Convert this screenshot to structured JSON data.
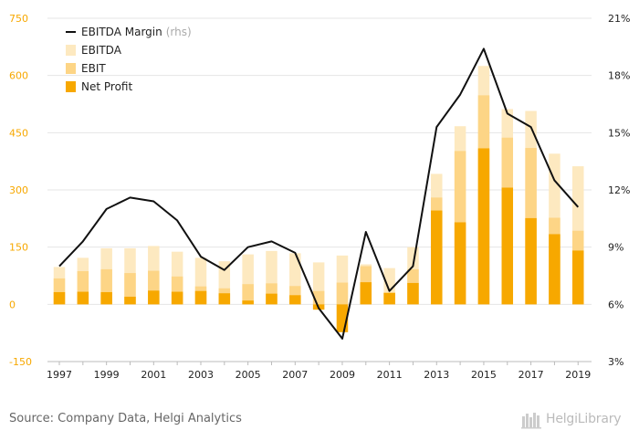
{
  "source_text": "Source: Company Data, Helgi Analytics",
  "brand_text": "HelgiLibrary",
  "colors": {
    "ebitda": "#fde9c0",
    "ebit": "#fdd586",
    "net_profit": "#f7a800",
    "margin_line": "#111111",
    "left_axis_text": "#f7a800",
    "right_axis_text": "#222222",
    "grid": "#e5e5e5"
  },
  "legend": [
    {
      "label": "EBITDA Margin",
      "suffix": "(rhs)",
      "kind": "line"
    },
    {
      "label": "EBITDA",
      "kind": "ebitda"
    },
    {
      "label": "EBIT",
      "kind": "ebit"
    },
    {
      "label": "Net Profit",
      "kind": "net_profit"
    }
  ],
  "chart_data": {
    "type": "bar",
    "subtype": "overlapping bars with line on secondary axis",
    "legend_position": "top-left",
    "grid": true,
    "categories": [
      "1997",
      "1998",
      "1999",
      "2000",
      "2001",
      "2002",
      "2003",
      "2004",
      "2005",
      "2006",
      "2007",
      "2008",
      "2009",
      "2010",
      "2011",
      "2012",
      "2013",
      "2014",
      "2015",
      "2016",
      "2017",
      "2018",
      "2019"
    ],
    "x_tick_labels": [
      "1997",
      "1999",
      "2001",
      "2003",
      "2005",
      "2007",
      "2009",
      "2011",
      "2013",
      "2015",
      "2017",
      "2019"
    ],
    "left_axis": {
      "ylim": [
        -150,
        750
      ],
      "ticks": [
        -150,
        0,
        150,
        300,
        450,
        600,
        750
      ],
      "tick_labels": [
        "-150",
        "0",
        "150",
        "300",
        "450",
        "600",
        "750"
      ]
    },
    "right_axis": {
      "ylim": [
        3,
        21
      ],
      "ticks": [
        3,
        6,
        9,
        12,
        15,
        18,
        21
      ],
      "tick_labels": [
        "3%",
        "6%",
        "9%",
        "12%",
        "15%",
        "18%",
        "21%"
      ]
    },
    "series": [
      {
        "name": "EBITDA",
        "axis": "left",
        "values": [
          98,
          122,
          147,
          147,
          153,
          138,
          122,
          113,
          131,
          140,
          134,
          110,
          128,
          105,
          95,
          150,
          342,
          467,
          625,
          512,
          507,
          395,
          362
        ]
      },
      {
        "name": "EBIT",
        "axis": "left",
        "values": [
          68,
          87,
          92,
          82,
          88,
          73,
          47,
          42,
          53,
          55,
          48,
          35,
          57,
          100,
          31,
          92,
          280,
          402,
          548,
          437,
          410,
          227,
          193
        ]
      },
      {
        "name": "Net Profit",
        "axis": "left",
        "values": [
          32,
          33,
          32,
          20,
          36,
          33,
          35,
          29,
          10,
          28,
          24,
          -14,
          -73,
          58,
          30,
          56,
          246,
          215,
          409,
          306,
          226,
          184,
          141
        ]
      },
      {
        "name": "EBITDA Margin",
        "axis": "right",
        "type": "line",
        "values": [
          8.0,
          9.3,
          11.0,
          11.6,
          11.4,
          10.4,
          8.5,
          7.8,
          9.0,
          9.3,
          8.7,
          5.8,
          4.2,
          9.8,
          6.7,
          8.0,
          15.3,
          17.0,
          19.4,
          16.0,
          15.3,
          12.5,
          11.1
        ]
      }
    ]
  }
}
